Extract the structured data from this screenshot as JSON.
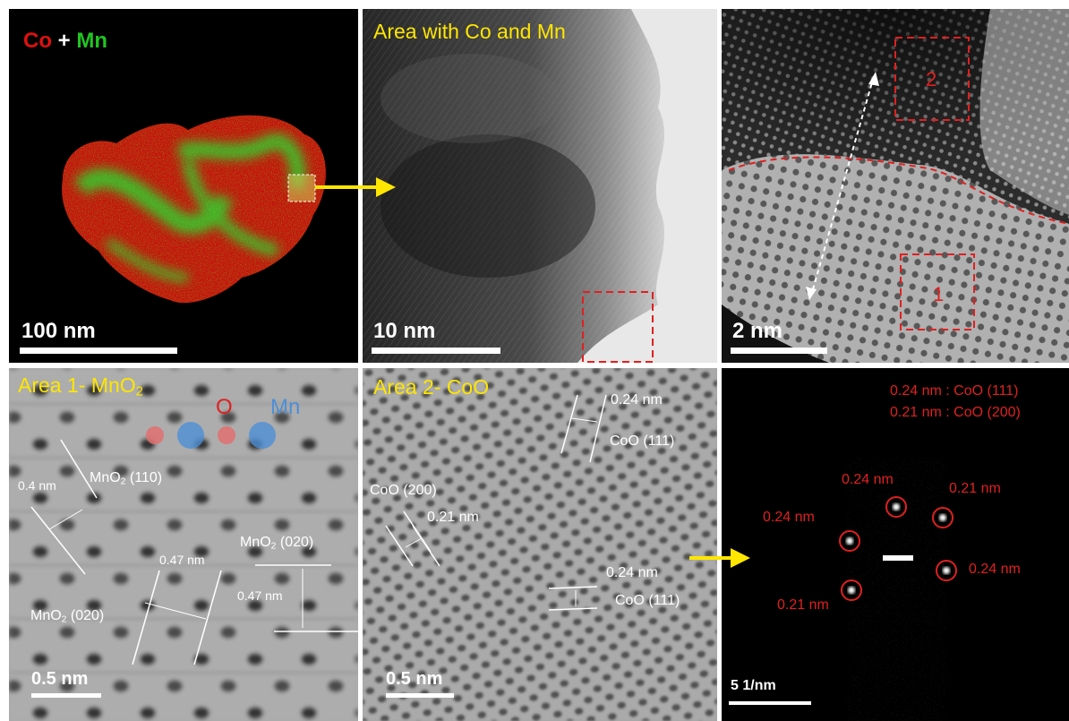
{
  "colors": {
    "co": "#e01010",
    "mn": "#21c421",
    "yellow": "#ffe600",
    "red_annotation": "#e02020",
    "white": "#ffffff"
  },
  "panels": {
    "eds_map": {
      "legend": {
        "co": "Co",
        "plus": "+",
        "mn": "Mn"
      },
      "scale_bar": "100 nm"
    },
    "tem_overview": {
      "title": "Area with Co and Mn",
      "scale_bar": "10 nm"
    },
    "hrtem_interface": {
      "region_1": "1",
      "region_2": "2",
      "scale_bar": "2 nm"
    },
    "area1": {
      "title": "Area 1- MnO",
      "title_sub": "2",
      "legend_o": "O",
      "legend_mn": "Mn",
      "plane_110": {
        "pre": "MnO",
        "sub": "2",
        "post": " (110)"
      },
      "d_04": "0.4 nm",
      "d_047a": "0.47 nm",
      "plane_020a": {
        "pre": "MnO",
        "sub": "2",
        "post": " (020)"
      },
      "d_047b": "0.47 nm",
      "plane_020b": {
        "pre": "MnO",
        "sub": "2",
        "post": " (020)"
      },
      "scale_bar": "0.5 nm"
    },
    "area2": {
      "title": "Area 2- CoO",
      "d_024a": "0.24 nm",
      "plane_111a": "CoO (111)",
      "plane_200": "CoO (200)",
      "d_021": "0.21 nm",
      "d_024b": "0.24 nm",
      "plane_111b": "CoO (111)",
      "scale_bar": "0.5 nm"
    },
    "fft": {
      "key_1": "0.24 nm : CoO (111)",
      "key_2": "0.21 nm : CoO (200)",
      "spot_top": "0.24 nm",
      "spot_top_right": "0.21 nm",
      "spot_left": "0.24 nm",
      "spot_right": "0.24 nm",
      "spot_bottom": "0.21 nm",
      "scale_bar": "5 1/nm"
    }
  }
}
